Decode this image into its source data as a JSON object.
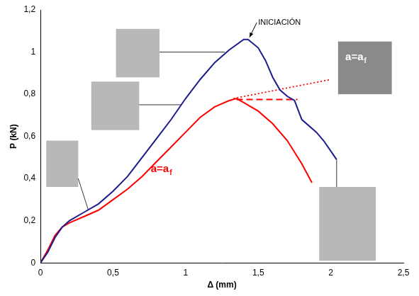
{
  "chart_data": {
    "type": "line",
    "x_label": "Δ (mm)",
    "y_label": "P (kN)",
    "xlim": [
      0,
      2.5
    ],
    "ylim": [
      0,
      1.2
    ],
    "xticks": [
      0,
      {
        "value": 0.5,
        "label": "0,5"
      },
      1,
      {
        "value": 1.5,
        "label": "1,5"
      },
      2,
      {
        "value": 2.5,
        "label": "2,5"
      }
    ],
    "yticks": [
      0,
      {
        "value": 0.2,
        "label": "0,2"
      },
      {
        "value": 0.4,
        "label": "0,4"
      },
      {
        "value": 0.6,
        "label": "0,6"
      },
      {
        "value": 0.8,
        "label": "0,8"
      },
      1,
      {
        "value": 1.2,
        "label": "1,2"
      }
    ],
    "grid": false,
    "series": [
      {
        "color": "#1c1c8c",
        "line_style": "solid",
        "x": [
          0,
          0.05,
          0.1,
          0.15,
          0.2,
          0.3,
          0.4,
          0.5,
          0.6,
          0.7,
          0.8,
          0.9,
          1.0,
          1.1,
          1.2,
          1.3,
          1.4,
          1.43,
          1.5,
          1.55,
          1.6,
          1.65,
          1.7,
          1.75,
          1.8,
          1.9,
          1.95,
          2.0,
          2.04
        ],
        "values": [
          0,
          0.05,
          0.12,
          0.17,
          0.2,
          0.24,
          0.28,
          0.34,
          0.41,
          0.5,
          0.59,
          0.68,
          0.78,
          0.87,
          0.95,
          1.01,
          1.06,
          1.06,
          1.02,
          0.96,
          0.88,
          0.82,
          0.79,
          0.77,
          0.68,
          0.62,
          0.58,
          0.53,
          0.49
        ]
      },
      {
        "color": "#ff0000",
        "line_style": "solid",
        "x": [
          0,
          0.05,
          0.1,
          0.15,
          0.2,
          0.3,
          0.4,
          0.5,
          0.6,
          0.7,
          0.8,
          0.9,
          1.0,
          1.1,
          1.2,
          1.3,
          1.35,
          1.4,
          1.5,
          1.6,
          1.7,
          1.8,
          1.87
        ],
        "values": [
          0,
          0.06,
          0.13,
          0.17,
          0.19,
          0.22,
          0.25,
          0.3,
          0.35,
          0.41,
          0.48,
          0.55,
          0.62,
          0.69,
          0.74,
          0.77,
          0.78,
          0.76,
          0.72,
          0.66,
          0.58,
          0.47,
          0.38
        ]
      },
      {
        "color": "#ff0000",
        "line_style": "dotted",
        "x": [
          1.33,
          2.0
        ],
        "values": [
          0.78,
          0.87
        ]
      },
      {
        "color": "#ff0000",
        "line_style": "dashed",
        "x": [
          1.35,
          1.77
        ],
        "values": [
          0.775,
          0.775
        ]
      }
    ],
    "annotations": [
      {
        "text": "INICIACIÓN",
        "color": "#000000"
      },
      {
        "text": "a=a",
        "subscript": "f",
        "color": "#ff0000"
      },
      {
        "text": "a=a",
        "subscript": "f",
        "color": "#ffffff"
      }
    ]
  }
}
